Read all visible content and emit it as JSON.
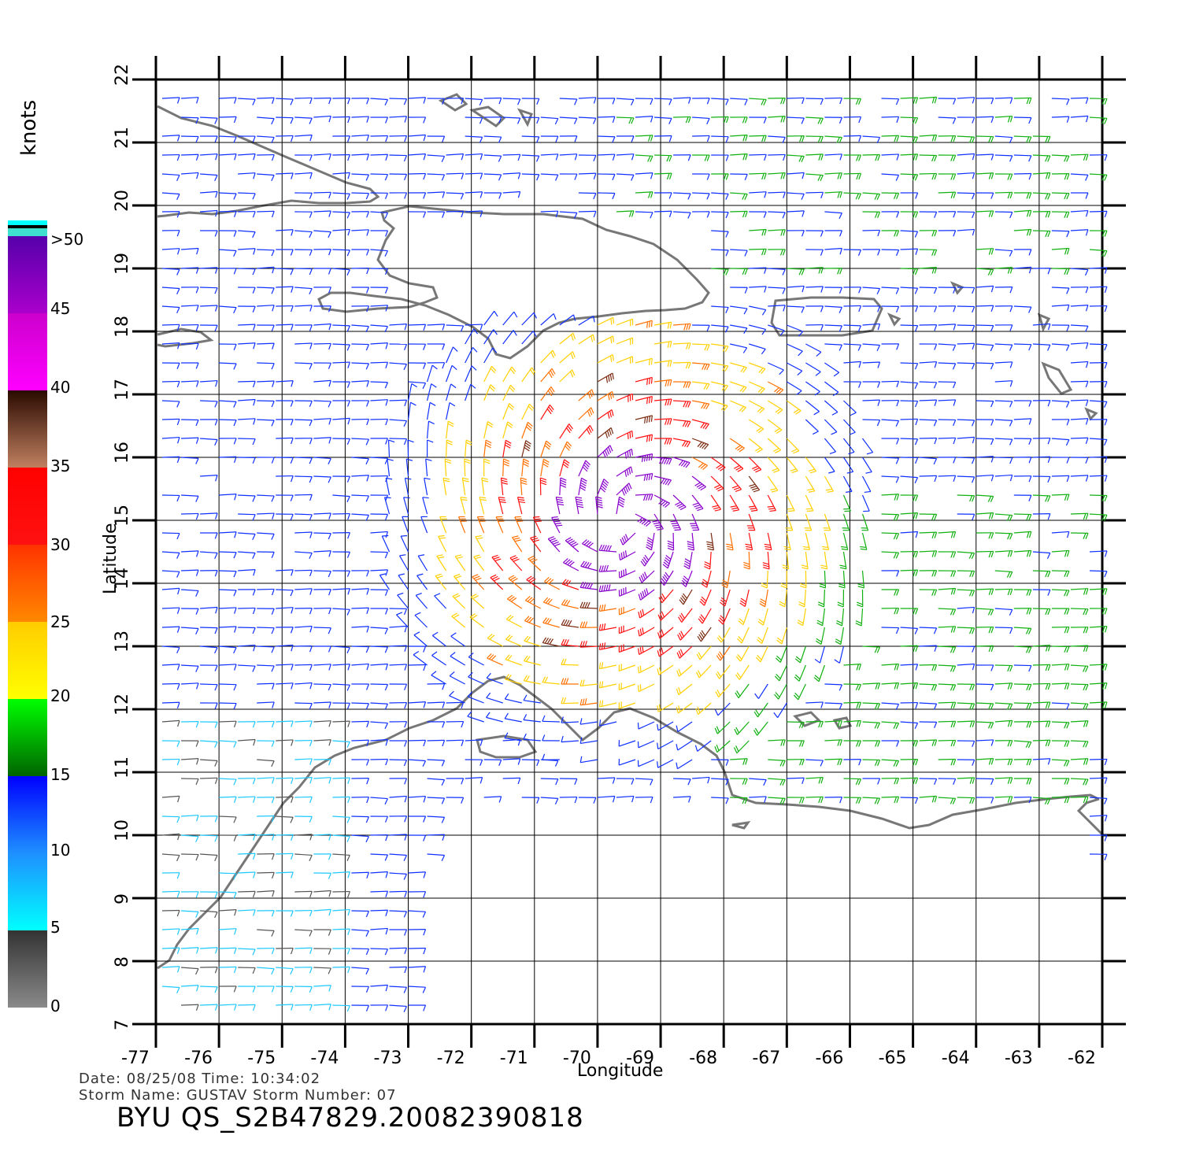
{
  "map": {
    "lon_ticks": [
      "-77",
      "-76",
      "-75",
      "-74",
      "-73",
      "-72",
      "-71",
      "-70",
      "-69",
      "-68",
      "-67",
      "-66",
      "-65",
      "-64",
      "-63",
      "-62"
    ],
    "lat_ticks": [
      "7",
      "8",
      "9",
      "10",
      "11",
      "12",
      "13",
      "14",
      "15",
      "16",
      "17",
      "18",
      "19",
      "20",
      "21",
      "22"
    ],
    "xlabel": "Longitude",
    "ylabel": "Latitude",
    "coast_color": "#777777",
    "grid_color": "#000000"
  },
  "colorbar": {
    "unit": "knots",
    "labels": [
      ">50",
      "45",
      "40",
      "35",
      "30",
      "25",
      "20",
      "15",
      "10",
      "5",
      "0"
    ],
    "stops": [
      {
        "from": 0,
        "to": 5,
        "colors": [
          "#8a8a8a",
          "#333333"
        ]
      },
      {
        "from": 5,
        "to": 10,
        "colors": [
          "#00ffff",
          "#1e90ff"
        ]
      },
      {
        "from": 10,
        "to": 15,
        "colors": [
          "#1e90ff",
          "#0000ff"
        ]
      },
      {
        "from": 15,
        "to": 20,
        "colors": [
          "#006400",
          "#00ff00"
        ]
      },
      {
        "from": 20,
        "to": 25,
        "colors": [
          "#ffff00",
          "#ffcc00"
        ]
      },
      {
        "from": 25,
        "to": 30,
        "colors": [
          "#ff8800",
          "#ff3300"
        ]
      },
      {
        "from": 30,
        "to": 35,
        "colors": [
          "#ff1111",
          "#ff0000"
        ]
      },
      {
        "from": 35,
        "to": 40,
        "colors": [
          "#c08060",
          "#2a0a00"
        ]
      },
      {
        "from": 40,
        "to": 45,
        "colors": [
          "#ff00ff",
          "#cc00cc"
        ]
      },
      {
        "from": 45,
        "to": 50,
        "colors": [
          "#aa00cc",
          "#5500aa"
        ]
      }
    ]
  },
  "footer": {
    "date_line": "Date: 08/25/08   Time: 10:34:02",
    "storm_line": "Storm  Name: GUSTAV   Storm  Number: 07",
    "file_name": "BYU  QS_S2B47829.20082390818"
  },
  "storm_center": {
    "lon": -69.5,
    "lat": 15.0
  }
}
